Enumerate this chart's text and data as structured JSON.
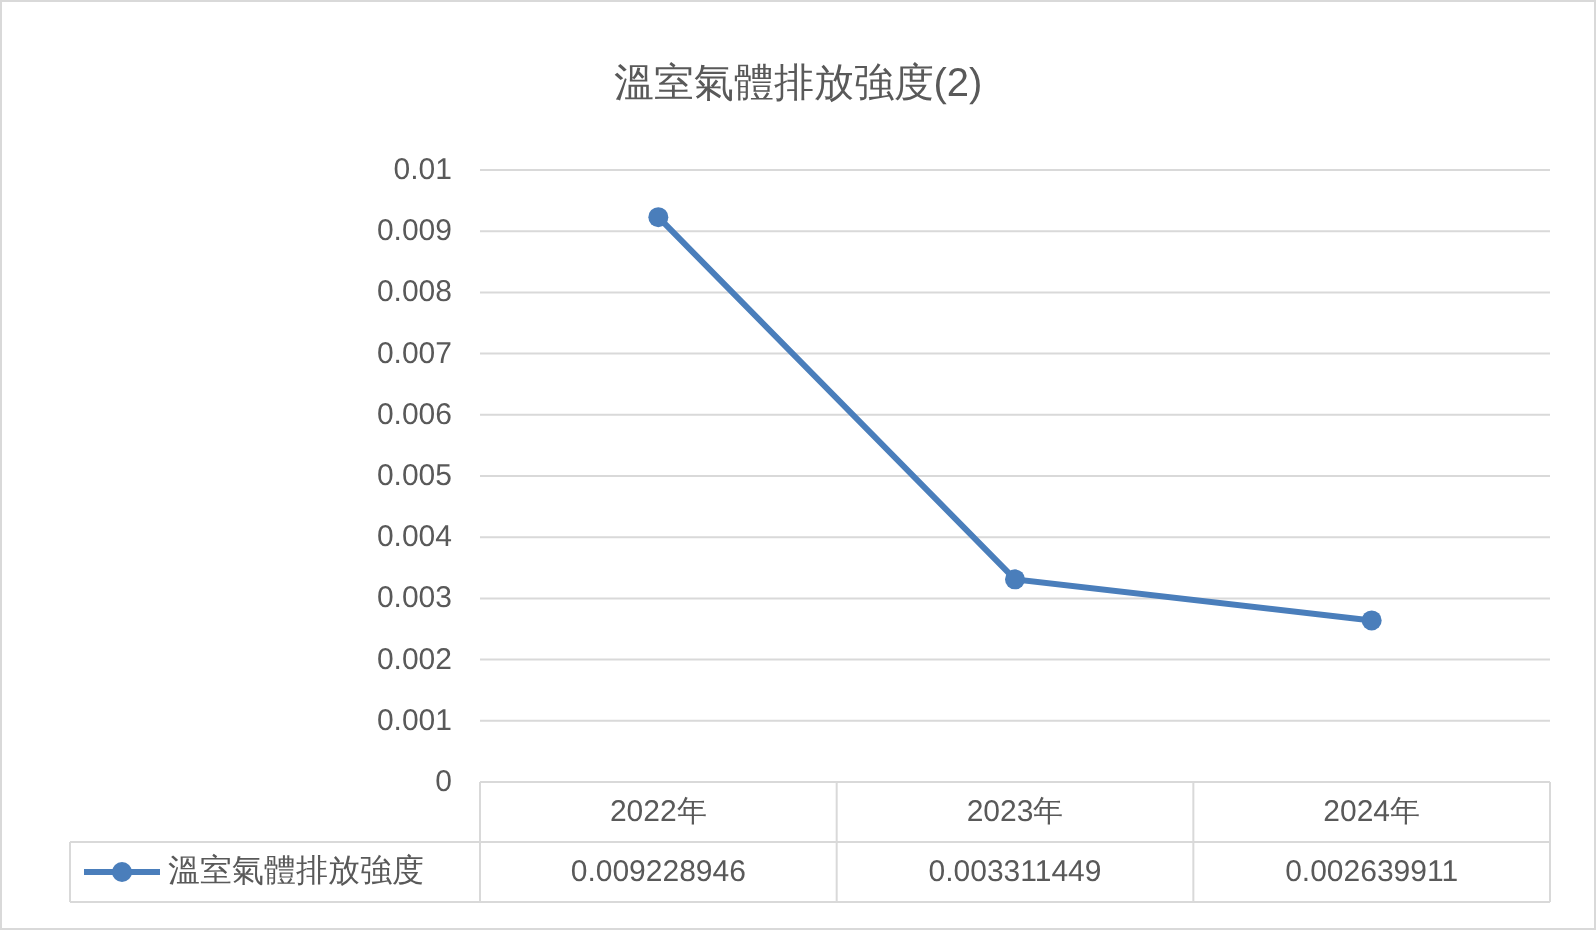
{
  "chart_data": {
    "type": "line",
    "title": "溫室氣體排放強度(2)",
    "categories": [
      "2022年",
      "2023年",
      "2024年"
    ],
    "series": [
      {
        "name": "溫室氣體排放強度",
        "color": "#4a7ebb",
        "values": [
          0.009228946,
          0.003311449,
          0.002639911
        ]
      }
    ],
    "ylim": [
      0,
      0.01
    ],
    "yticks": [
      0,
      0.001,
      0.002,
      0.003,
      0.004,
      0.005,
      0.006,
      0.007,
      0.008,
      0.009,
      0.01
    ],
    "grid": "y",
    "marker": "circle",
    "line_style": "solid",
    "legend": "bottom",
    "data_labels": true
  }
}
